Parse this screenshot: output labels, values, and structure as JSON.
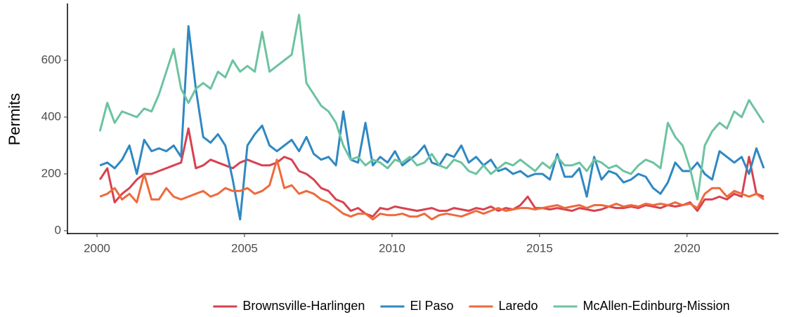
{
  "chart_data": {
    "type": "line",
    "y_label": "Permits",
    "xlim": [
      1999,
      2023.1
    ],
    "ylim": [
      -10,
      800
    ],
    "xticks": [
      2000,
      2005,
      2010,
      2015,
      2020
    ],
    "yticks": [
      0,
      200,
      400,
      600
    ],
    "grid": false,
    "legend_position": "bottom",
    "x": [
      2000.1,
      2000.35,
      2000.6,
      2000.85,
      2001.1,
      2001.35,
      2001.6,
      2001.85,
      2002.1,
      2002.35,
      2002.6,
      2002.85,
      2003.1,
      2003.35,
      2003.6,
      2003.85,
      2004.1,
      2004.35,
      2004.6,
      2004.85,
      2005.1,
      2005.35,
      2005.6,
      2005.85,
      2006.1,
      2006.35,
      2006.6,
      2006.85,
      2007.1,
      2007.35,
      2007.6,
      2007.85,
      2008.1,
      2008.35,
      2008.6,
      2008.85,
      2009.1,
      2009.35,
      2009.6,
      2009.85,
      2010.1,
      2010.35,
      2010.6,
      2010.85,
      2011.1,
      2011.35,
      2011.6,
      2011.85,
      2012.1,
      2012.35,
      2012.6,
      2012.85,
      2013.1,
      2013.35,
      2013.6,
      2013.85,
      2014.1,
      2014.35,
      2014.6,
      2014.85,
      2015.1,
      2015.35,
      2015.6,
      2015.85,
      2016.1,
      2016.35,
      2016.6,
      2016.85,
      2017.1,
      2017.35,
      2017.6,
      2017.85,
      2018.1,
      2018.35,
      2018.6,
      2018.85,
      2019.1,
      2019.35,
      2019.6,
      2019.85,
      2020.1,
      2020.35,
      2020.6,
      2020.85,
      2021.1,
      2021.35,
      2021.6,
      2021.85,
      2022.1,
      2022.35,
      2022.6
    ],
    "series": [
      {
        "name": "Brownsville-Harlingen",
        "color": "#d7424f",
        "values": [
          180,
          220,
          100,
          130,
          150,
          180,
          200,
          200,
          210,
          220,
          230,
          240,
          360,
          220,
          230,
          250,
          240,
          230,
          220,
          240,
          250,
          240,
          230,
          230,
          240,
          260,
          250,
          210,
          200,
          180,
          150,
          140,
          110,
          100,
          70,
          80,
          60,
          50,
          80,
          75,
          85,
          80,
          75,
          70,
          75,
          80,
          70,
          70,
          80,
          75,
          70,
          80,
          75,
          85,
          70,
          80,
          75,
          90,
          120,
          80,
          80,
          75,
          80,
          75,
          70,
          80,
          75,
          70,
          75,
          85,
          80,
          80,
          85,
          80,
          90,
          85,
          80,
          90,
          85,
          90,
          100,
          70,
          110,
          110,
          120,
          110,
          130,
          120,
          260,
          130,
          120
        ]
      },
      {
        "name": "El Paso",
        "color": "#2f88c2",
        "values": [
          230,
          240,
          220,
          250,
          300,
          200,
          320,
          280,
          290,
          280,
          300,
          260,
          720,
          500,
          330,
          310,
          340,
          300,
          180,
          40,
          300,
          340,
          370,
          300,
          280,
          300,
          320,
          280,
          330,
          270,
          250,
          260,
          230,
          420,
          250,
          240,
          380,
          230,
          260,
          240,
          280,
          230,
          250,
          270,
          300,
          240,
          230,
          270,
          260,
          300,
          240,
          260,
          230,
          250,
          210,
          220,
          200,
          210,
          190,
          200,
          200,
          180,
          270,
          190,
          190,
          220,
          120,
          260,
          180,
          210,
          200,
          170,
          180,
          200,
          190,
          150,
          130,
          170,
          240,
          210,
          210,
          240,
          200,
          180,
          280,
          260,
          240,
          260,
          200,
          290,
          220
        ]
      },
      {
        "name": "Laredo",
        "color": "#ee6a3c",
        "values": [
          120,
          130,
          150,
          110,
          130,
          100,
          200,
          110,
          110,
          150,
          120,
          110,
          120,
          130,
          140,
          120,
          130,
          150,
          140,
          140,
          150,
          130,
          140,
          160,
          250,
          150,
          160,
          130,
          140,
          130,
          110,
          100,
          80,
          60,
          50,
          60,
          60,
          40,
          60,
          55,
          55,
          60,
          50,
          50,
          60,
          40,
          55,
          60,
          55,
          50,
          60,
          70,
          60,
          70,
          80,
          70,
          75,
          80,
          80,
          75,
          80,
          85,
          90,
          80,
          85,
          90,
          80,
          90,
          90,
          85,
          95,
          85,
          90,
          85,
          95,
          90,
          95,
          90,
          100,
          90,
          95,
          80,
          130,
          150,
          150,
          120,
          140,
          130,
          120,
          130,
          110
        ]
      },
      {
        "name": "McAllen-Edinburg-Mission",
        "color": "#6cc3a0",
        "values": [
          350,
          450,
          380,
          420,
          410,
          400,
          430,
          420,
          480,
          560,
          640,
          500,
          450,
          500,
          520,
          500,
          560,
          540,
          600,
          560,
          580,
          560,
          700,
          560,
          580,
          600,
          620,
          760,
          520,
          480,
          440,
          420,
          380,
          300,
          250,
          260,
          230,
          250,
          240,
          220,
          250,
          240,
          260,
          230,
          240,
          270,
          230,
          220,
          250,
          240,
          210,
          200,
          230,
          200,
          220,
          240,
          230,
          250,
          230,
          210,
          240,
          220,
          260,
          230,
          230,
          240,
          210,
          250,
          240,
          220,
          230,
          210,
          200,
          230,
          250,
          240,
          220,
          380,
          330,
          300,
          220,
          110,
          300,
          350,
          380,
          360,
          420,
          400,
          460,
          420,
          380
        ]
      }
    ]
  }
}
